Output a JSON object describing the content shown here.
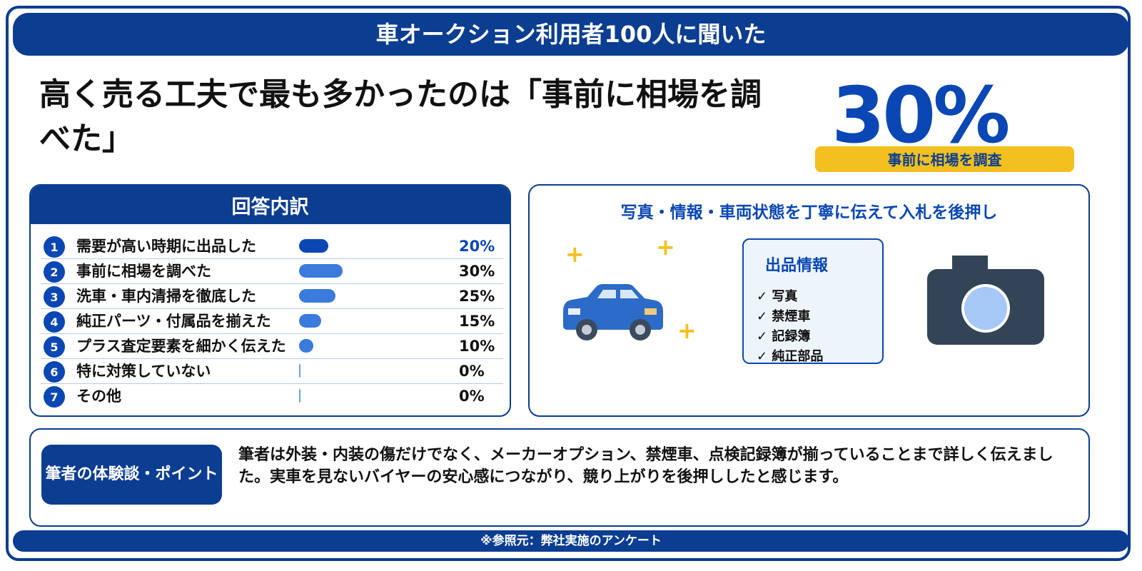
{
  "banner": {
    "title": "車オークション利用者100人に聞いた"
  },
  "headline": {
    "text": "高く売る工夫で最も多かったのは「事前に相場を調べた」"
  },
  "highlight": {
    "percent": "30%",
    "label": "事前に相場を調査"
  },
  "breakdown": {
    "title": "回答内訳"
  },
  "chart_data": {
    "type": "bar",
    "title": "回答内訳",
    "categories": [
      "需要が高い時期に出品した",
      "事前に相場を調べた",
      "洗車・車内清掃を徹底した",
      "純正パーツ・付属品を揃えた",
      "プラス査定要素を細かく伝えた",
      "特に対策していない",
      "その他"
    ],
    "values": [
      20,
      30,
      25,
      15,
      10,
      0,
      0
    ],
    "value_labels": [
      "20%",
      "30%",
      "25%",
      "15%",
      "10%",
      "0%",
      "0%"
    ],
    "numbers": [
      "1",
      "2",
      "3",
      "4",
      "5",
      "6",
      "7"
    ],
    "highlight_label_color": "#0b47b4",
    "bar_colors": [
      "#0b47b4",
      "#3a7bdc",
      "#3a7bdc",
      "#3a7bdc",
      "#3a7bdc",
      "#3a7bdc",
      "#3a7bdc"
    ],
    "ylim": [
      0,
      100
    ]
  },
  "visual": {
    "title": "写真・情報・車両状態を丁寧に伝えて入札を後押し",
    "info_card": {
      "title": "出品情報",
      "items": [
        "✓ 写真",
        "✓ 禁煙車",
        "✓ 記録簿",
        "✓ 純正部品"
      ]
    },
    "icons": [
      "car-icon",
      "camera-icon",
      "sparkle-icon"
    ],
    "sparkle": "+"
  },
  "experience": {
    "tag": "筆者の体験談・ポイント",
    "text": "筆者は外装・内装の傷だけでなく、メーカーオプション、禁煙車、点検記録簿が揃っていることまで詳しく伝えました。実車を見ないバイヤーの安心感につながり、競り上がりを後押ししたと感じます。"
  },
  "footer": {
    "source": "※参照元：弊社実施のアンケート"
  },
  "colors": {
    "navy": "#0b3d91",
    "blue": "#0b47b4",
    "accent_yellow": "#f3c020"
  }
}
